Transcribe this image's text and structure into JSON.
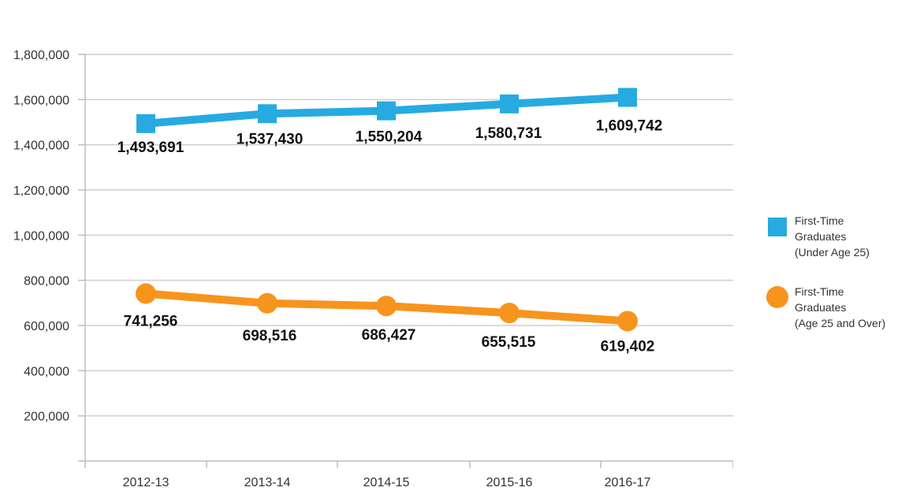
{
  "chart_data": {
    "type": "line",
    "categories": [
      "2012-13",
      "2013-14",
      "2014-15",
      "2015-16",
      "2016-17"
    ],
    "ylim": [
      0,
      1800000
    ],
    "yticks": [
      200000,
      400000,
      600000,
      800000,
      1000000,
      1200000,
      1400000,
      1600000,
      1800000
    ],
    "ytick_labels": [
      "200,000",
      "400,000",
      "600,000",
      "800,000",
      "1,000,000",
      "1,200,000",
      "1,400,000",
      "1,600,000",
      "1,800,000"
    ],
    "grid": true,
    "legend_position": "right",
    "series": [
      {
        "name": "First-Time Graduates (Under Age 25)",
        "legend_lines": "First-Time\nGraduates\n(Under Age 25)",
        "marker": "square",
        "color": "#27aae1",
        "values": [
          1493691,
          1537430,
          1550204,
          1580731,
          1609742
        ],
        "labels": [
          "1,493,691",
          "1,537,430",
          "1,550,204",
          "1,580,731",
          "1,609,742"
        ]
      },
      {
        "name": "First-Time Graduates (Age 25 and Over)",
        "legend_lines": "First-Time\nGraduates\n(Age 25 and Over)",
        "marker": "circle",
        "color": "#f7941d",
        "values": [
          741256,
          698516,
          686427,
          655515,
          619402
        ],
        "labels": [
          "741,256",
          "698,516",
          "686,427",
          "655,515",
          "619,402"
        ]
      }
    ]
  }
}
